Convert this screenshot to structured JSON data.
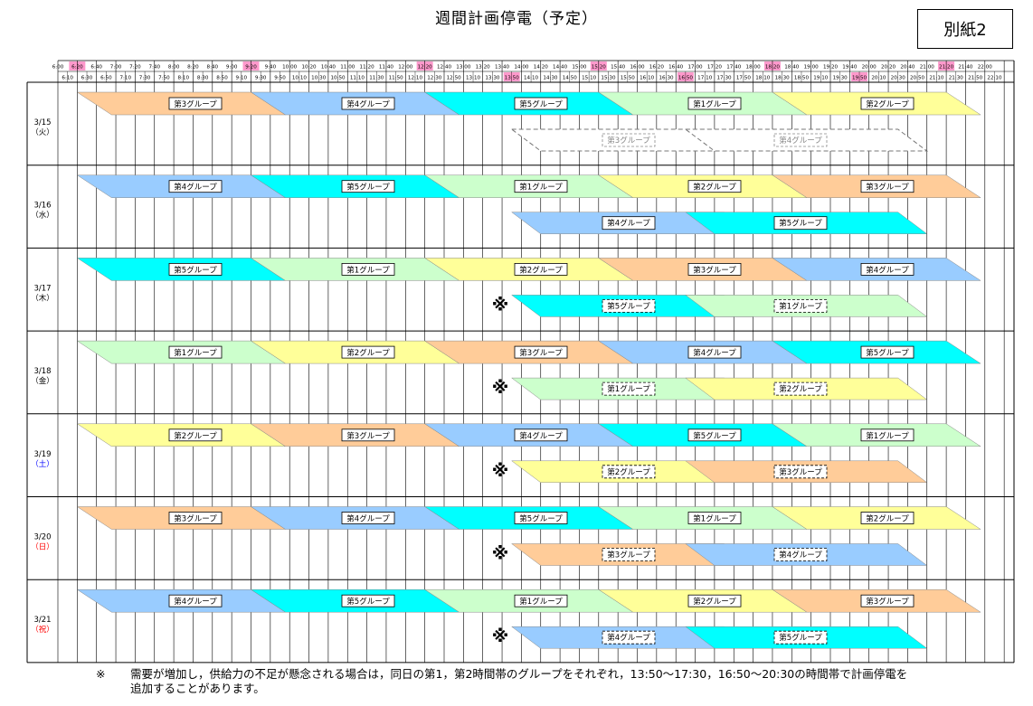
{
  "title": "週間計画停電（予定）",
  "attachment_label": "別紙2",
  "times_top": [
    "6:00",
    "6:20",
    "6:40",
    "7:00",
    "7:20",
    "7:40",
    "8:00",
    "8:20",
    "8:40",
    "9:00",
    "9:20",
    "9:40",
    "10:00",
    "10:20",
    "10:40",
    "11:00",
    "11:20",
    "11:40",
    "12:00",
    "12:20",
    "12:40",
    "13:00",
    "13:20",
    "13:40",
    "14:00",
    "14:20",
    "14:40",
    "15:00",
    "15:20",
    "15:40",
    "16:00",
    "16:20",
    "16:40",
    "17:00",
    "17:20",
    "17:40",
    "18:00",
    "18:20",
    "18:40",
    "19:00",
    "19:20",
    "19:40",
    "20:00",
    "20:20",
    "20:40",
    "21:00",
    "21:20",
    "21:40",
    "22:00"
  ],
  "times_bottom": [
    "6:10",
    "6:30",
    "6:50",
    "7:10",
    "7:30",
    "7:50",
    "8:10",
    "8:30",
    "8:50",
    "9:10",
    "9:30",
    "9:50",
    "10:10",
    "10:30",
    "10:50",
    "11:10",
    "11:30",
    "11:50",
    "12:10",
    "12:30",
    "12:50",
    "13:10",
    "13:30",
    "13:50",
    "14:10",
    "14:30",
    "14:50",
    "15:10",
    "15:30",
    "15:50",
    "16:10",
    "16:30",
    "16:50",
    "17:10",
    "17:30",
    "17:50",
    "18:10",
    "18:30",
    "18:50",
    "19:10",
    "19:30",
    "19:50",
    "20:10",
    "20:30",
    "20:50",
    "21:10",
    "21:30",
    "21:50",
    "22:10"
  ],
  "highlight_top": [
    "6:20",
    "9:20",
    "12:20",
    "15:20",
    "18:20",
    "21:20"
  ],
  "highlight_bottom": [
    "13:50",
    "16:50",
    "19:50"
  ],
  "colors": {
    "group1": "#CCFFCC",
    "group2": "#FFFF99",
    "group3": "#FFCC99",
    "group4": "#99CCFF",
    "group5": "#00FFFF",
    "highlight": "#FF99CC",
    "sunday": "#FF0000",
    "saturday": "#0000FF"
  },
  "days": [
    {
      "date": "3/15",
      "weekday": "（火）",
      "weekday_color": "#000000",
      "main": [
        "第3グループ",
        "第4グループ",
        "第5グループ",
        "第1グループ",
        "第2グループ"
      ],
      "extra": [
        "第3グループ",
        "第4グループ"
      ],
      "extra_style": "dashed",
      "mark": ""
    },
    {
      "date": "3/16",
      "weekday": "（水）",
      "weekday_color": "#000000",
      "main": [
        "第4グループ",
        "第5グループ",
        "第1グループ",
        "第2グループ",
        "第3グループ"
      ],
      "extra": [
        "第4グループ",
        "第5グループ"
      ],
      "extra_style": "solid",
      "mark": ""
    },
    {
      "date": "3/17",
      "weekday": "（木）",
      "weekday_color": "#000000",
      "main": [
        "第5グループ",
        "第1グループ",
        "第2グループ",
        "第3グループ",
        "第4グループ"
      ],
      "extra": [
        "第5グループ",
        "第1グループ"
      ],
      "extra_style": "dashed",
      "mark": "※"
    },
    {
      "date": "3/18",
      "weekday": "（金）",
      "weekday_color": "#000000",
      "main": [
        "第1グループ",
        "第2グループ",
        "第3グループ",
        "第4グループ",
        "第5グループ"
      ],
      "extra": [
        "第1グループ",
        "第2グループ"
      ],
      "extra_style": "dashed",
      "mark": "※"
    },
    {
      "date": "3/19",
      "weekday": "（土）",
      "weekday_color": "#0000FF",
      "main": [
        "第2グループ",
        "第3グループ",
        "第4グループ",
        "第5グループ",
        "第1グループ"
      ],
      "extra": [
        "第2グループ",
        "第3グループ"
      ],
      "extra_style": "dashed",
      "mark": "※"
    },
    {
      "date": "3/20",
      "weekday": "（日）",
      "weekday_color": "#FF0000",
      "main": [
        "第3グループ",
        "第4グループ",
        "第5グループ",
        "第1グループ",
        "第2グループ"
      ],
      "extra": [
        "第3グループ",
        "第4グループ"
      ],
      "extra_style": "dashed",
      "mark": "※"
    },
    {
      "date": "3/21",
      "weekday": "（祝）",
      "weekday_color": "#FF0000",
      "main": [
        "第4グループ",
        "第5グループ",
        "第1グループ",
        "第2グループ",
        "第3グループ"
      ],
      "extra": [
        "第4グループ",
        "第5グループ"
      ],
      "extra_style": "dashed",
      "mark": "※"
    }
  ],
  "footnote": {
    "mark": "※",
    "text_line1": "需要が増加し，供給力の不足が懸念される場合は，同日の第1，第2時間帯のグループをそれぞれ，13:50～17:30，16:50～20:30の時間帯で計画停電を",
    "text_line2": "追加することがあります。"
  }
}
